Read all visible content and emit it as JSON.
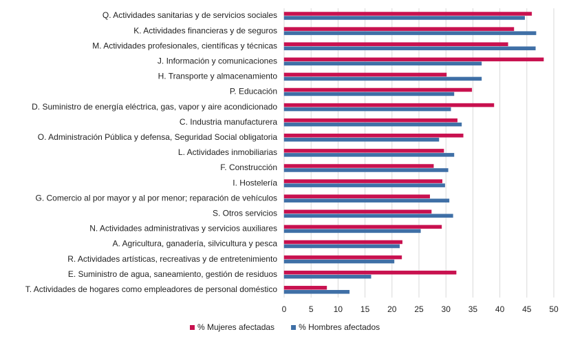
{
  "chart_data": {
    "type": "bar",
    "orientation": "horizontal",
    "categories": [
      "Q. Actividades sanitarias y de servicios sociales",
      "K. Actividades financieras y de seguros",
      "M. Actividades profesionales, científicas y técnicas",
      "J. Información y comunicaciones",
      "H. Transporte y almacenamiento",
      "P. Educación",
      "D. Suministro de energía eléctrica, gas, vapor y aire acondicionado",
      "C. Industria manufacturera",
      "O. Administración Pública y defensa, Seguridad Social obligatoria",
      "L. Actividades inmobiliarias",
      "F. Construcción",
      "I. Hostelería",
      "G. Comercio al por mayor y al por menor; reparación de vehículos",
      "S. Otros servicios",
      "N. Actividades administrativas y servicios auxiliares",
      "A. Agricultura, ganadería, silvicultura y pesca",
      "R. Actividades artísticas, recreativas y de entretenimiento",
      "E. Suministro de agua, saneamiento, gestión de residuos",
      "T. Actividades de hogares como empleadores de personal doméstico"
    ],
    "series": [
      {
        "name": "% Mujeres afectadas",
        "color": "#c8114f",
        "values": [
          45.9,
          42.6,
          41.5,
          48.1,
          30.1,
          34.8,
          38.9,
          32.1,
          33.2,
          29.6,
          27.7,
          29.3,
          27.0,
          27.3,
          29.2,
          21.9,
          21.8,
          31.9,
          7.9
        ]
      },
      {
        "name": "% Hombres afectados",
        "color": "#3f6fa6",
        "values": [
          44.6,
          46.7,
          46.6,
          36.6,
          36.6,
          31.5,
          30.9,
          32.9,
          28.7,
          31.5,
          30.4,
          29.8,
          30.6,
          31.3,
          25.3,
          21.4,
          20.4,
          16.1,
          12.1
        ]
      }
    ],
    "xlim": [
      0,
      50
    ],
    "xticks": [
      0,
      5,
      10,
      15,
      20,
      25,
      30,
      35,
      40,
      45,
      50
    ],
    "grid": true,
    "legend": "bottom"
  }
}
